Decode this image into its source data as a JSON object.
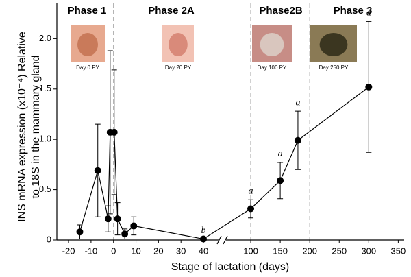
{
  "chart_data": {
    "type": "line",
    "x_label": "Stage of lactation (days)",
    "y_label": [
      "INS mRNA expression (x10⁻⁴) Relative",
      "to 18S in the mammary gland"
    ],
    "x_segments": [
      {
        "xlim": [
          -25.2,
          47
        ],
        "xticks": [
          -20,
          -10,
          0,
          10,
          20,
          30,
          40
        ]
      },
      {
        "xlim": [
          57,
          360
        ],
        "xticks": [
          100,
          150,
          200,
          250,
          300,
          350
        ]
      }
    ],
    "ylim": [
      0,
      2.35
    ],
    "yticks": [
      0,
      0.5,
      {
        "value": 1.0,
        "label": "1.0"
      },
      1.5,
      {
        "value": 2.0,
        "label": "2.0"
      }
    ],
    "phase_lines": [
      0,
      100,
      200
    ],
    "phases": [
      "Phase 1",
      "Phase 2A",
      "Phase2B",
      "Phase 3"
    ],
    "photo_captions": [
      "Day 0 PY",
      "Day 20 PY",
      "Day 100 PY",
      "Day 250 PY"
    ],
    "series": [
      {
        "color": "#000000",
        "x": [
          -15,
          -7,
          -2.4,
          -1.5,
          0.3,
          1.8,
          5,
          9,
          40,
          100,
          150,
          180,
          300
        ],
        "values": [
          0.08,
          0.69,
          0.21,
          1.07,
          1.07,
          0.21,
          0.06,
          0.14,
          0.01,
          0.31,
          0.59,
          0.99,
          1.52
        ],
        "errors": [
          0.07,
          0.46,
          0.13,
          0.81,
          0.62,
          0.16,
          0.05,
          0.09,
          0,
          0.09,
          0.18,
          0.29,
          0.65
        ],
        "point_letters": [
          null,
          null,
          null,
          null,
          null,
          null,
          null,
          null,
          "b",
          "a",
          "a",
          "a",
          "a"
        ]
      }
    ]
  }
}
